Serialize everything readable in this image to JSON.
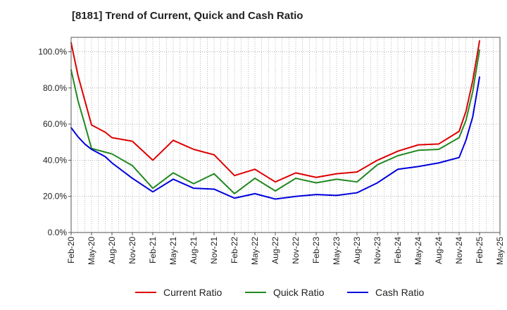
{
  "chart_data": {
    "type": "line",
    "title": "[8181]  Trend of Current, Quick and Cash Ratio",
    "xlabel": "",
    "ylabel": "",
    "ylim": [
      0,
      108
    ],
    "y_ticks": [
      0,
      20,
      40,
      60,
      80,
      100
    ],
    "y_tick_labels": [
      "0.0%",
      "20.0%",
      "40.0%",
      "60.0%",
      "80.0%",
      "100.0%"
    ],
    "x_count": 64,
    "x_tick_labels": [
      "Feb-20",
      "May-20",
      "Aug-20",
      "Nov-20",
      "Feb-21",
      "May-21",
      "Aug-21",
      "Nov-21",
      "Feb-22",
      "May-22",
      "Aug-22",
      "Nov-22",
      "Feb-23",
      "May-23",
      "Aug-23",
      "Nov-23",
      "Feb-24",
      "May-24",
      "Aug-24",
      "Nov-24",
      "Feb-25",
      "May-25"
    ],
    "grid": true,
    "legend_position": "bottom",
    "series": [
      {
        "name": "Current Ratio",
        "color": "#dd0000",
        "points": [
          [
            0,
            105
          ],
          [
            1,
            87
          ],
          [
            3,
            59.5
          ],
          [
            5,
            55.5
          ],
          [
            6,
            52.5
          ],
          [
            9,
            50.5
          ],
          [
            12,
            40
          ],
          [
            15,
            51
          ],
          [
            18,
            46
          ],
          [
            21,
            43
          ],
          [
            24,
            31.5
          ],
          [
            27,
            35
          ],
          [
            30,
            28
          ],
          [
            33,
            33
          ],
          [
            36,
            30.5
          ],
          [
            39,
            32.5
          ],
          [
            42,
            33.5
          ],
          [
            45,
            40
          ],
          [
            48,
            45
          ],
          [
            51,
            48.5
          ],
          [
            54,
            49
          ],
          [
            57,
            56
          ],
          [
            58,
            67
          ],
          [
            59,
            84
          ],
          [
            60,
            106
          ]
        ]
      },
      {
        "name": "Quick Ratio",
        "color": "#228822",
        "points": [
          [
            0,
            90
          ],
          [
            1,
            73
          ],
          [
            2,
            60
          ],
          [
            3,
            46.5
          ],
          [
            5,
            44.5
          ],
          [
            6,
            43.5
          ],
          [
            9,
            37
          ],
          [
            12,
            24.5
          ],
          [
            15,
            33
          ],
          [
            18,
            27
          ],
          [
            21,
            32.5
          ],
          [
            24,
            21.5
          ],
          [
            27,
            30
          ],
          [
            30,
            23
          ],
          [
            33,
            30
          ],
          [
            36,
            27.5
          ],
          [
            39,
            29.5
          ],
          [
            42,
            28
          ],
          [
            45,
            37.5
          ],
          [
            48,
            42.5
          ],
          [
            51,
            45.5
          ],
          [
            54,
            46
          ],
          [
            57,
            52.5
          ],
          [
            58,
            62
          ],
          [
            59,
            78
          ],
          [
            60,
            101
          ]
        ]
      },
      {
        "name": "Cash Ratio",
        "color": "#0000dd",
        "points": [
          [
            0,
            58
          ],
          [
            1,
            53
          ],
          [
            2,
            49
          ],
          [
            3,
            46
          ],
          [
            5,
            42
          ],
          [
            6,
            38.5
          ],
          [
            9,
            30
          ],
          [
            12,
            22.5
          ],
          [
            15,
            29.5
          ],
          [
            18,
            24.5
          ],
          [
            21,
            24
          ],
          [
            24,
            19
          ],
          [
            27,
            21.5
          ],
          [
            30,
            18.5
          ],
          [
            33,
            20
          ],
          [
            36,
            21
          ],
          [
            39,
            20.5
          ],
          [
            42,
            22
          ],
          [
            45,
            27.5
          ],
          [
            48,
            35
          ],
          [
            51,
            36.5
          ],
          [
            54,
            38.5
          ],
          [
            57,
            41.5
          ],
          [
            58,
            51
          ],
          [
            59,
            64
          ],
          [
            60,
            86
          ]
        ]
      }
    ]
  }
}
